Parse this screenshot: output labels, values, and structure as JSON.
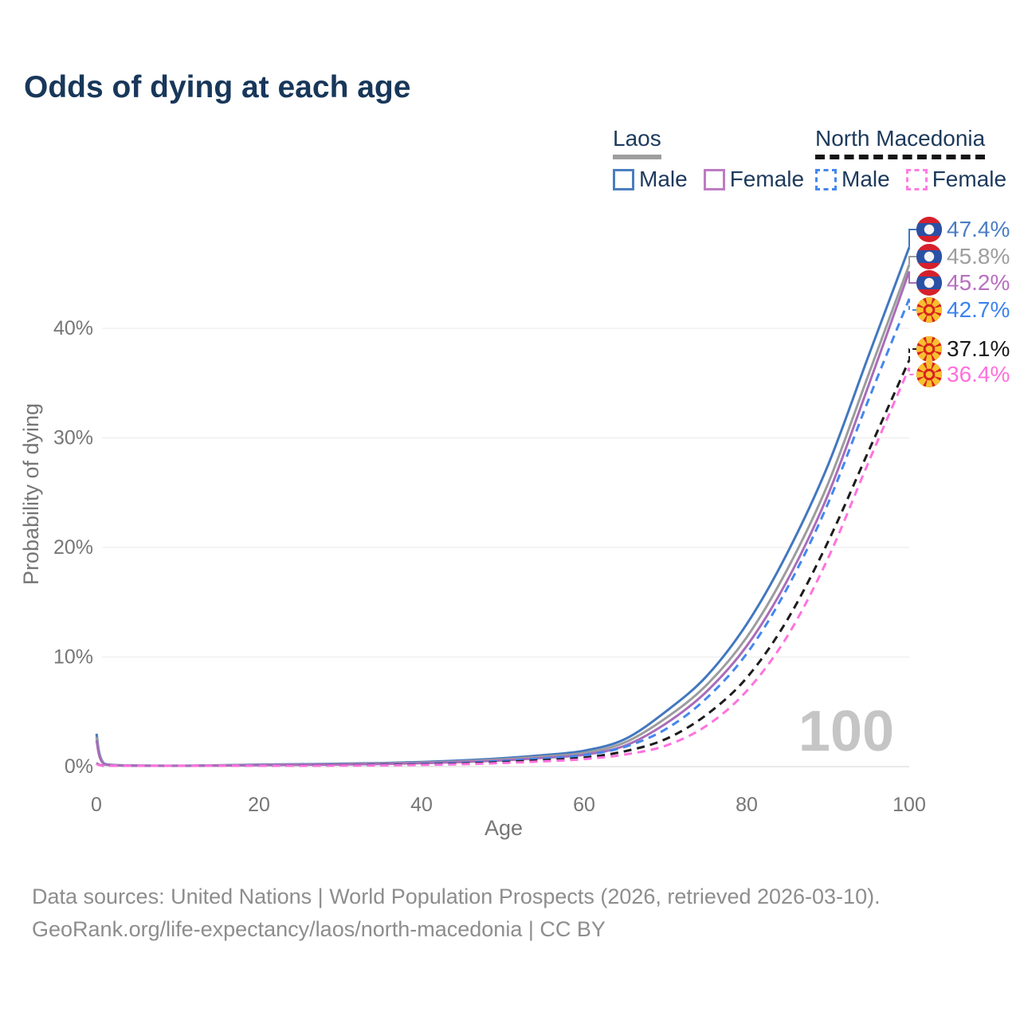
{
  "title": "Odds of dying at each age",
  "legend": {
    "laos": {
      "label": "Laos",
      "male": "Male",
      "female": "Female",
      "style": "solid",
      "underline_color": "#9e9e9e"
    },
    "north_macedonia": {
      "label": "North Macedonia",
      "male": "Male",
      "female": "Female",
      "style": "dashed",
      "underline_color": "#141414"
    }
  },
  "axes": {
    "x": {
      "label": "Age",
      "tick_labels": [
        "0",
        "20",
        "40",
        "60",
        "80",
        "100"
      ]
    },
    "y": {
      "label": "Probability of dying",
      "tick_labels": [
        "0%",
        "10%",
        "20%",
        "30%",
        "40%"
      ]
    }
  },
  "watermark": "100",
  "end_labels": [
    {
      "value": "47.4%",
      "color": "#4a7dc4",
      "flag": "laos"
    },
    {
      "value": "45.8%",
      "color": "#9e9e9e",
      "flag": "laos"
    },
    {
      "value": "45.2%",
      "color": "#b76fc0",
      "flag": "laos"
    },
    {
      "value": "42.7%",
      "color": "#3b82f0",
      "flag": "north-macedonia"
    },
    {
      "value": "37.1%",
      "color": "#1a1a1a",
      "flag": "north-macedonia"
    },
    {
      "value": "36.4%",
      "color": "#ff70dd",
      "flag": "north-macedonia"
    }
  ],
  "footer": {
    "line1": "Data sources: United Nations | World Population Prospects (2026, retrieved 2026-03-10).",
    "line2": "GeoRank.org/life-expectancy/laos/north-macedonia | CC BY"
  },
  "chart_data": {
    "type": "line",
    "title": "Odds of dying at each age",
    "xlabel": "Age",
    "ylabel": "Probability of dying",
    "xlim": [
      0,
      100
    ],
    "ylim_pct": [
      0,
      47.5
    ],
    "x_ticks": [
      0,
      20,
      40,
      60,
      80,
      100
    ],
    "y_ticks_pct": [
      0,
      10,
      20,
      30,
      40
    ],
    "grid": "horizontal",
    "legend_position": "top-right",
    "ages": [
      0,
      1,
      5,
      10,
      15,
      20,
      25,
      30,
      35,
      40,
      45,
      50,
      55,
      60,
      65,
      70,
      75,
      80,
      85,
      90,
      95,
      100
    ],
    "series": [
      {
        "name": "Laos male",
        "country": "Laos",
        "style": "solid",
        "color": "#4277bf",
        "end_value_pct": 47.4,
        "values_pct": [
          3.0,
          0.25,
          0.1,
          0.08,
          0.12,
          0.18,
          0.22,
          0.26,
          0.32,
          0.42,
          0.56,
          0.76,
          1.05,
          1.45,
          2.5,
          5.0,
          8.2,
          13.0,
          19.5,
          27.5,
          37.5,
          47.4
        ]
      },
      {
        "name": "Laos both sexes",
        "country": "Laos",
        "style": "solid",
        "color": "#9c9c9c",
        "end_value_pct": 45.8,
        "values_pct": [
          2.7,
          0.22,
          0.09,
          0.07,
          0.11,
          0.15,
          0.19,
          0.22,
          0.28,
          0.36,
          0.48,
          0.66,
          0.92,
          1.25,
          2.2,
          4.4,
          7.4,
          11.8,
          18.0,
          25.8,
          35.8,
          45.8
        ]
      },
      {
        "name": "Laos female",
        "country": "Laos",
        "style": "solid",
        "color": "#a96db8",
        "end_value_pct": 45.2,
        "values_pct": [
          2.4,
          0.2,
          0.08,
          0.06,
          0.09,
          0.13,
          0.16,
          0.19,
          0.24,
          0.31,
          0.42,
          0.57,
          0.8,
          1.08,
          1.9,
          3.9,
          6.8,
          11.0,
          17.0,
          24.8,
          34.8,
          45.2
        ]
      },
      {
        "name": "North Macedonia male",
        "country": "North Macedonia",
        "style": "dashed",
        "color": "#4487ef",
        "end_value_pct": 42.7,
        "values_pct": [
          0.3,
          0.05,
          0.03,
          0.03,
          0.06,
          0.09,
          0.11,
          0.13,
          0.17,
          0.23,
          0.34,
          0.52,
          0.75,
          1.05,
          1.8,
          3.4,
          6.2,
          10.3,
          16.3,
          24.0,
          33.5,
          42.7
        ]
      },
      {
        "name": "North Macedonia both sexes",
        "country": "North Macedonia",
        "style": "dashed",
        "color": "#1c1c1c",
        "end_value_pct": 37.1,
        "values_pct": [
          0.27,
          0.04,
          0.02,
          0.02,
          0.05,
          0.07,
          0.09,
          0.11,
          0.14,
          0.19,
          0.27,
          0.41,
          0.59,
          0.82,
          1.4,
          2.5,
          4.7,
          8.1,
          13.4,
          20.5,
          28.8,
          37.1
        ]
      },
      {
        "name": "North Macedonia female",
        "country": "North Macedonia",
        "style": "dashed",
        "color": "#ff72de",
        "end_value_pct": 36.4,
        "values_pct": [
          0.24,
          0.04,
          0.02,
          0.02,
          0.04,
          0.06,
          0.07,
          0.09,
          0.11,
          0.15,
          0.22,
          0.33,
          0.48,
          0.68,
          1.1,
          1.9,
          3.7,
          6.9,
          11.9,
          19.0,
          27.8,
          36.4
        ]
      }
    ]
  }
}
